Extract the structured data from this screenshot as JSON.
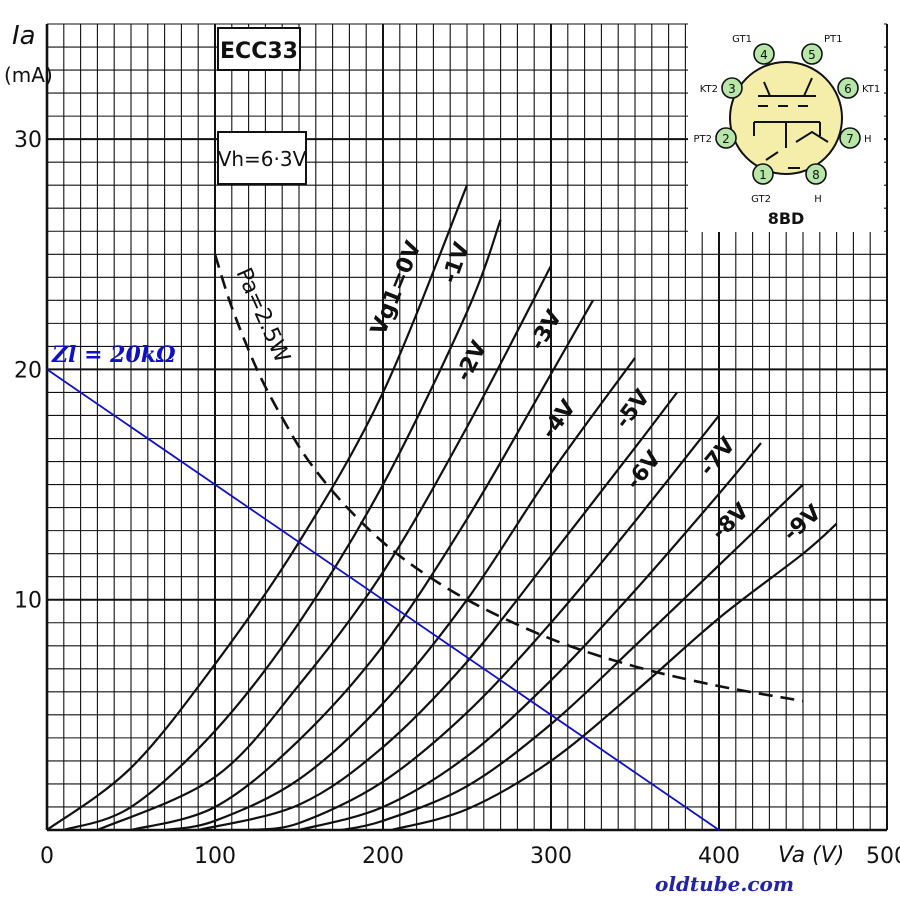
{
  "chart_data": {
    "type": "line",
    "tube_label": "ECC33",
    "heater_label": "Vh=6·3V",
    "xlabel": "Va (V)",
    "ylabel": "Ia",
    "ylabel_unit": "(mA)",
    "xlim": [
      0,
      500
    ],
    "ylim": [
      0,
      35
    ],
    "x_ticks": [
      "0",
      "100",
      "200",
      "300",
      "400",
      "500"
    ],
    "y_ticks": [
      "10",
      "20",
      "30"
    ],
    "grid": true,
    "series": [
      {
        "name": "Vg1=0V",
        "x": [
          0,
          50,
          100,
          150,
          200,
          250
        ],
        "y": [
          0,
          2.7,
          7.2,
          12.5,
          19,
          28
        ]
      },
      {
        "name": "-1V",
        "x": [
          10,
          50,
          100,
          150,
          200,
          250,
          270
        ],
        "y": [
          0,
          1.0,
          4.3,
          9,
          15,
          22.5,
          26.5
        ]
      },
      {
        "name": "-2V",
        "x": [
          30,
          100,
          150,
          200,
          250,
          300
        ],
        "y": [
          0,
          2.3,
          6.3,
          11.2,
          17.5,
          24.5
        ]
      },
      {
        "name": "-3V",
        "x": [
          50,
          100,
          150,
          200,
          250,
          300,
          325
        ],
        "y": [
          0,
          1.0,
          3.9,
          8,
          13.5,
          19.8,
          23
        ]
      },
      {
        "name": "-4V",
        "x": [
          70,
          100,
          150,
          200,
          250,
          300,
          350
        ],
        "y": [
          0,
          0.4,
          2.2,
          5.5,
          10,
          15.5,
          20.5
        ]
      },
      {
        "name": "-5V",
        "x": [
          90,
          150,
          200,
          250,
          300,
          350,
          375
        ],
        "y": [
          0,
          1.1,
          3.6,
          7.3,
          11.9,
          16.6,
          19
        ]
      },
      {
        "name": "-6V",
        "x": [
          120,
          150,
          200,
          250,
          300,
          350,
          400
        ],
        "y": [
          0,
          0.3,
          2.1,
          5.1,
          9,
          13.4,
          18
        ]
      },
      {
        "name": "-7V",
        "x": [
          150,
          200,
          250,
          300,
          350,
          400,
          425
        ],
        "y": [
          0,
          1.0,
          3.2,
          6.5,
          10.4,
          14.6,
          16.8
        ]
      },
      {
        "name": "-8V",
        "x": [
          175,
          200,
          250,
          300,
          350,
          400,
          450
        ],
        "y": [
          0,
          0.4,
          1.9,
          4.6,
          8,
          11.5,
          15
        ]
      },
      {
        "name": "-9V",
        "x": [
          205,
          250,
          300,
          350,
          400,
          450,
          470
        ],
        "y": [
          0,
          0.9,
          3.0,
          6,
          9.2,
          12,
          13.3
        ]
      }
    ],
    "dissipation_curve": {
      "name": "Pa=2.5W",
      "x": [
        100,
        110,
        125,
        140,
        156,
        180,
        210,
        250,
        300,
        350,
        400,
        450
      ],
      "y": [
        25,
        22.7,
        20,
        17.9,
        16,
        13.9,
        11.9,
        10,
        8.3,
        7.1,
        6.25,
        5.6
      ]
    },
    "load_line": {
      "name": "Zl = 20kΩ",
      "x": [
        0,
        400
      ],
      "y": [
        20,
        0
      ],
      "color": "#1010c8"
    }
  },
  "pinout": {
    "base_label": "8BD",
    "pins": [
      {
        "number": "1",
        "name": "GT2"
      },
      {
        "number": "2",
        "name": "PT2"
      },
      {
        "number": "3",
        "name": "KT2"
      },
      {
        "number": "4",
        "name": "GT1"
      },
      {
        "number": "5",
        "name": "PT1"
      },
      {
        "number": "6",
        "name": "KT1"
      },
      {
        "number": "7",
        "name": "H"
      },
      {
        "number": "8",
        "name": "H"
      }
    ],
    "bulb_color": "#f5eeaa",
    "pin_color": "#b8e6a8"
  },
  "credit": "oldtube.com"
}
